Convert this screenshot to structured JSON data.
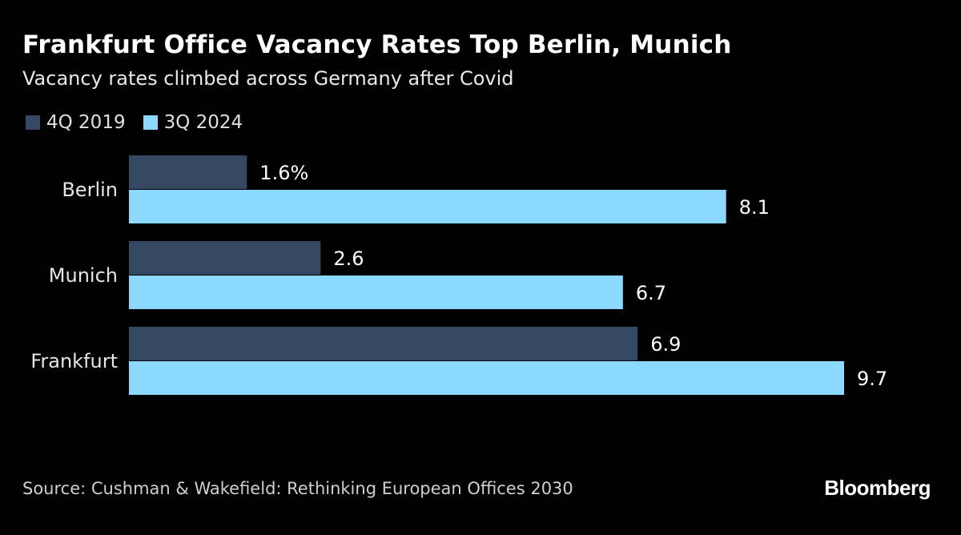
{
  "header": {
    "title": "Frankfurt Office Vacancy Rates Top Berlin, Munich",
    "subtitle": "Vacancy rates climbed across Germany after Covid"
  },
  "colors": {
    "series_2019": "#344961",
    "series_2024": "#8cd9ff",
    "background": "#000000"
  },
  "chart_data": {
    "type": "bar",
    "orientation": "horizontal",
    "title": "Frankfurt Office Vacancy Rates Top Berlin, Munich",
    "subtitle": "Vacancy rates climbed across Germany after Covid",
    "categories": [
      "Berlin",
      "Munich",
      "Frankfurt"
    ],
    "series": [
      {
        "name": "4Q 2019",
        "values": [
          1.6,
          2.6,
          6.9
        ],
        "labels": [
          "1.6%",
          "2.6",
          "6.9"
        ]
      },
      {
        "name": "3Q 2024",
        "values": [
          8.1,
          6.7,
          9.7
        ],
        "labels": [
          "8.1",
          "6.7",
          "9.7"
        ]
      }
    ],
    "xlabel": "",
    "ylabel": "",
    "xlim": [
      0,
      9.7
    ],
    "grid": false,
    "legend_position": "top-left"
  },
  "footer": {
    "source": "Source: Cushman & Wakefield: Rethinking European Offices 2030",
    "brand": "Bloomberg"
  }
}
